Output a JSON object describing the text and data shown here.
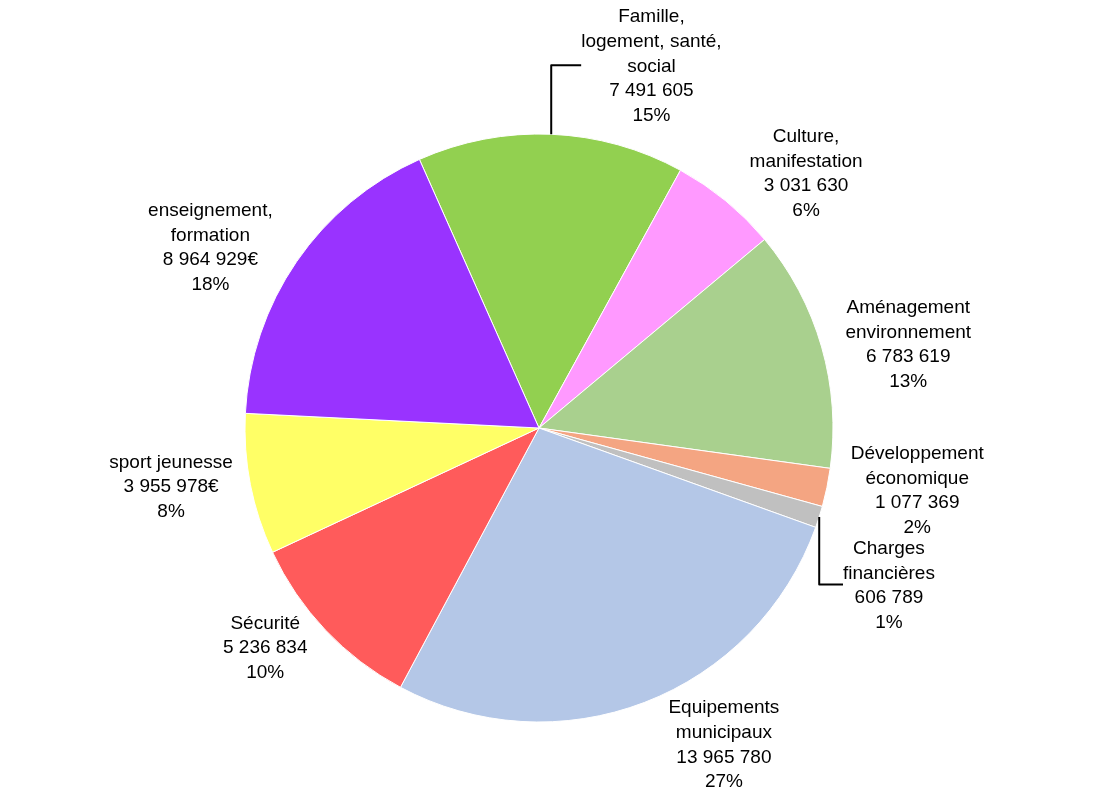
{
  "chart_data": {
    "type": "pie",
    "categories": [
      "Famille,\nlogement, santé,\nsocial",
      "Culture,\nmanifestation",
      "Aménagement\nenvironnement",
      "Développement\néconomique",
      "Charges\nfinancières",
      "Equipements\nmunicipaux",
      "Sécurité",
      "sport jeunesse",
      "enseignement,\nformation"
    ],
    "values": [
      7491605,
      3031630,
      6783619,
      1077369,
      606789,
      13965780,
      5236834,
      3955978,
      8964929
    ],
    "value_labels": [
      "7 491 605\n15%",
      "3 031 630\n6%",
      "6 783 619\n13%",
      "1 077 369\n2%",
      "606 789\n1%",
      "13 965 780\n27%",
      "5 236 834\n10%",
      "3 955 978€\n8%",
      "8 964 929€\n18%"
    ],
    "colors": [
      "#92d050",
      "#ff99ff",
      "#a9d08e",
      "#f4a582",
      "#c0c0c0",
      "#b4c7e7",
      "#ff5b5b",
      "#ffff66",
      "#9933ff"
    ],
    "legend": false
  }
}
